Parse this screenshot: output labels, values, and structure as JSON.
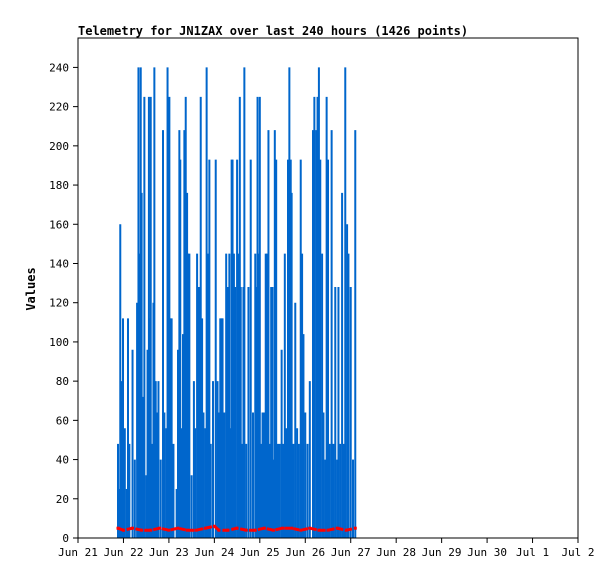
{
  "chart_data": {
    "type": "bar",
    "title": "Telemetry for JN1ZAX over last 240 hours (1426 points)",
    "xlabel": "",
    "ylabel": "Values",
    "ylim": [
      0,
      255
    ],
    "xlim": [
      "Jun 21",
      "Jul 2"
    ],
    "x_ticks": [
      "Jun 21",
      "Jun 22",
      "Jun 23",
      "Jun 24",
      "Jun 25",
      "Jun 26",
      "Jun 27",
      "Jun 28",
      "Jun 29",
      "Jun 30",
      "Jul 1",
      "Jul 2"
    ],
    "y_ticks": [
      0,
      20,
      40,
      60,
      80,
      100,
      120,
      140,
      160,
      180,
      200,
      220,
      240
    ],
    "grid": false,
    "legend": "none",
    "series": [
      {
        "color": "#0066cc",
        "style": "impulse",
        "x_day_start": "Jun 21",
        "points": [
          [
            0.88,
            48
          ],
          [
            0.9,
            25
          ],
          [
            0.93,
            160
          ],
          [
            0.95,
            80
          ],
          [
            0.97,
            40
          ],
          [
            0.99,
            112
          ],
          [
            1.03,
            56
          ],
          [
            1.07,
            25
          ],
          [
            1.1,
            112
          ],
          [
            1.13,
            48
          ],
          [
            1.2,
            96
          ],
          [
            1.25,
            40
          ],
          [
            1.3,
            120
          ],
          [
            1.33,
            240
          ],
          [
            1.35,
            145
          ],
          [
            1.38,
            240
          ],
          [
            1.4,
            176
          ],
          [
            1.43,
            72
          ],
          [
            1.46,
            225
          ],
          [
            1.5,
            32
          ],
          [
            1.53,
            96
          ],
          [
            1.56,
            225
          ],
          [
            1.58,
            112
          ],
          [
            1.6,
            225
          ],
          [
            1.63,
            48
          ],
          [
            1.66,
            120
          ],
          [
            1.68,
            240
          ],
          [
            1.71,
            80
          ],
          [
            1.74,
            64
          ],
          [
            1.77,
            80
          ],
          [
            1.82,
            40
          ],
          [
            1.87,
            208
          ],
          [
            1.9,
            64
          ],
          [
            1.94,
            56
          ],
          [
            1.97,
            240
          ],
          [
            1.99,
            208
          ],
          [
            2.01,
            225
          ],
          [
            2.03,
            112
          ],
          [
            2.06,
            112
          ],
          [
            2.1,
            48
          ],
          [
            2.17,
            25
          ],
          [
            2.2,
            96
          ],
          [
            2.23,
            208
          ],
          [
            2.25,
            193
          ],
          [
            2.28,
            56
          ],
          [
            2.31,
            104
          ],
          [
            2.34,
            208
          ],
          [
            2.37,
            225
          ],
          [
            2.4,
            176
          ],
          [
            2.42,
            145
          ],
          [
            2.45,
            145
          ],
          [
            2.5,
            32
          ],
          [
            2.55,
            80
          ],
          [
            2.58,
            56
          ],
          [
            2.62,
            145
          ],
          [
            2.65,
            128
          ],
          [
            2.67,
            128
          ],
          [
            2.7,
            225
          ],
          [
            2.73,
            112
          ],
          [
            2.76,
            64
          ],
          [
            2.8,
            56
          ],
          [
            2.83,
            240
          ],
          [
            2.86,
            145
          ],
          [
            2.89,
            193
          ],
          [
            2.92,
            48
          ],
          [
            2.97,
            80
          ],
          [
            3.03,
            193
          ],
          [
            3.07,
            80
          ],
          [
            3.1,
            64
          ],
          [
            3.13,
            112
          ],
          [
            3.16,
            112
          ],
          [
            3.18,
            112
          ],
          [
            3.22,
            64
          ],
          [
            3.26,
            145
          ],
          [
            3.28,
            128
          ],
          [
            3.3,
            128
          ],
          [
            3.33,
            145
          ],
          [
            3.36,
            56
          ],
          [
            3.38,
            193
          ],
          [
            3.4,
            193
          ],
          [
            3.43,
            145
          ],
          [
            3.46,
            128
          ],
          [
            3.5,
            193
          ],
          [
            3.53,
            145
          ],
          [
            3.56,
            225
          ],
          [
            3.58,
            128
          ],
          [
            3.61,
            48
          ],
          [
            3.64,
            128
          ],
          [
            3.66,
            240
          ],
          [
            3.7,
            48
          ],
          [
            3.75,
            128
          ],
          [
            3.8,
            193
          ],
          [
            3.85,
            64
          ],
          [
            3.9,
            145
          ],
          [
            3.92,
            128
          ],
          [
            3.95,
            225
          ],
          [
            3.97,
            145
          ],
          [
            4.0,
            225
          ],
          [
            4.03,
            48
          ],
          [
            4.06,
            64
          ],
          [
            4.1,
            64
          ],
          [
            4.13,
            145
          ],
          [
            4.16,
            145
          ],
          [
            4.19,
            208
          ],
          [
            4.22,
            48
          ],
          [
            4.25,
            128
          ],
          [
            4.28,
            128
          ],
          [
            4.31,
            40
          ],
          [
            4.33,
            208
          ],
          [
            4.36,
            193
          ],
          [
            4.4,
            48
          ],
          [
            4.44,
            48
          ],
          [
            4.48,
            96
          ],
          [
            4.52,
            48
          ],
          [
            4.55,
            145
          ],
          [
            4.58,
            56
          ],
          [
            4.62,
            193
          ],
          [
            4.65,
            240
          ],
          [
            4.68,
            193
          ],
          [
            4.7,
            176
          ],
          [
            4.74,
            48
          ],
          [
            4.78,
            120
          ],
          [
            4.82,
            56
          ],
          [
            4.86,
            48
          ],
          [
            4.9,
            193
          ],
          [
            4.93,
            145
          ],
          [
            4.96,
            104
          ],
          [
            5.0,
            64
          ],
          [
            5.05,
            48
          ],
          [
            5.1,
            80
          ],
          [
            5.17,
            208
          ],
          [
            5.2,
            225
          ],
          [
            5.24,
            208
          ],
          [
            5.27,
            225
          ],
          [
            5.3,
            240
          ],
          [
            5.33,
            193
          ],
          [
            5.37,
            145
          ],
          [
            5.4,
            64
          ],
          [
            5.44,
            40
          ],
          [
            5.47,
            225
          ],
          [
            5.5,
            193
          ],
          [
            5.54,
            48
          ],
          [
            5.58,
            208
          ],
          [
            5.62,
            48
          ],
          [
            5.66,
            128
          ],
          [
            5.7,
            40
          ],
          [
            5.73,
            128
          ],
          [
            5.77,
            48
          ],
          [
            5.81,
            176
          ],
          [
            5.85,
            48
          ],
          [
            5.88,
            240
          ],
          [
            5.92,
            160
          ],
          [
            5.95,
            145
          ],
          [
            6.0,
            128
          ],
          [
            6.05,
            40
          ],
          [
            6.1,
            208
          ]
        ]
      },
      {
        "color": "#ff0000",
        "style": "line",
        "x_day_start": "Jun 21",
        "points": [
          [
            0.88,
            5
          ],
          [
            1.0,
            4
          ],
          [
            1.2,
            5
          ],
          [
            1.4,
            4
          ],
          [
            1.6,
            4
          ],
          [
            1.8,
            5
          ],
          [
            2.0,
            4
          ],
          [
            2.2,
            5
          ],
          [
            2.4,
            4
          ],
          [
            2.6,
            4
          ],
          [
            2.8,
            5
          ],
          [
            3.0,
            6
          ],
          [
            3.1,
            4
          ],
          [
            3.3,
            4
          ],
          [
            3.5,
            5
          ],
          [
            3.7,
            4
          ],
          [
            3.9,
            4
          ],
          [
            4.1,
            5
          ],
          [
            4.3,
            4
          ],
          [
            4.5,
            5
          ],
          [
            4.7,
            5
          ],
          [
            4.9,
            4
          ],
          [
            5.1,
            5
          ],
          [
            5.3,
            4
          ],
          [
            5.5,
            4
          ],
          [
            5.7,
            5
          ],
          [
            5.9,
            4
          ],
          [
            6.1,
            5
          ]
        ]
      }
    ]
  }
}
